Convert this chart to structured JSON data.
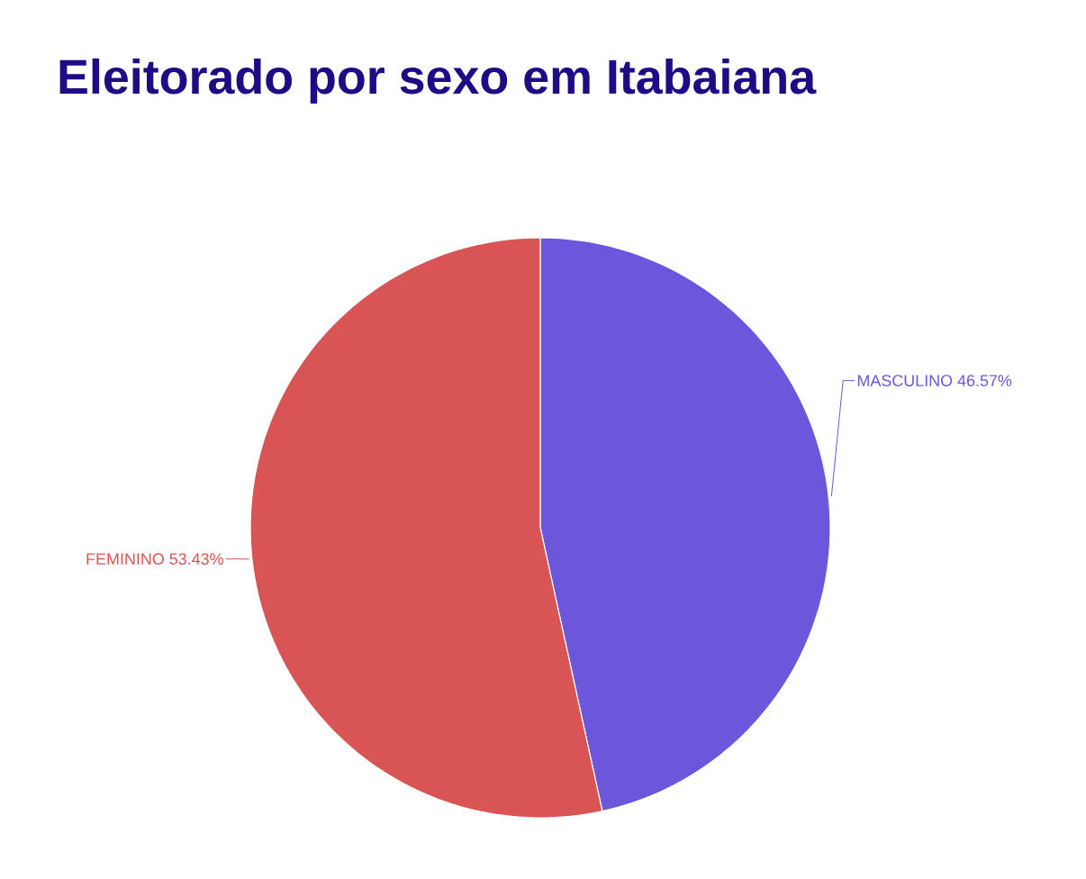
{
  "chart_data": {
    "type": "pie",
    "title": "Eleitorado por sexo em Itabaiana",
    "categories": [
      "MASCULINO",
      "FEMININO"
    ],
    "values": [
      46.57,
      53.43
    ],
    "value_labels": [
      "46.57%",
      "53.43%"
    ],
    "colors": [
      "#6c56dc",
      "#d95555"
    ]
  }
}
